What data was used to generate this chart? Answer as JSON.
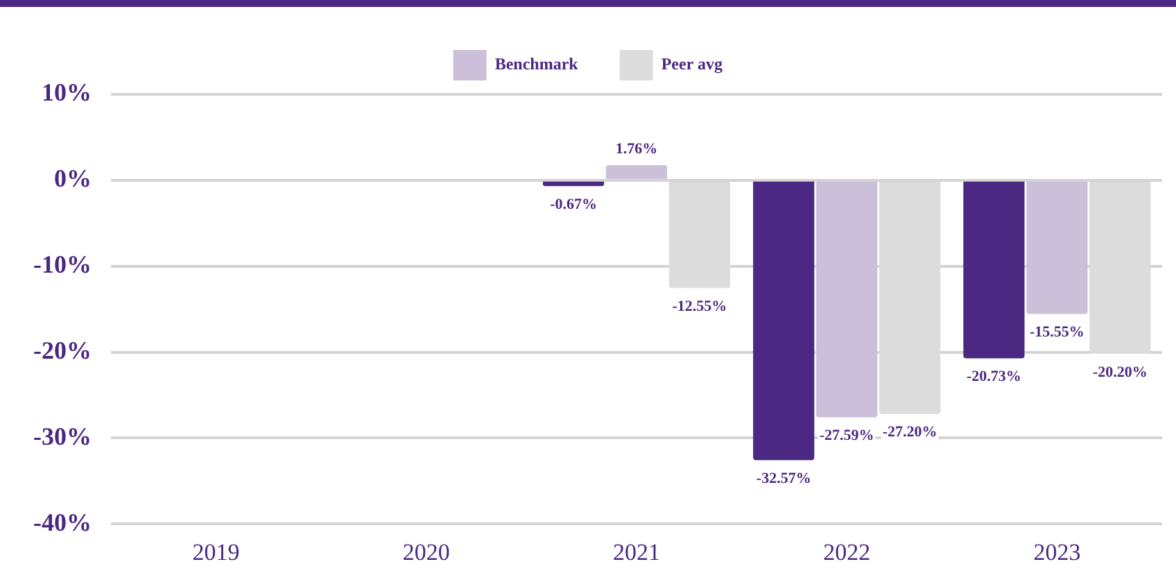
{
  "chart_data": {
    "type": "bar",
    "categories": [
      "2019",
      "2020",
      "2021",
      "2022",
      "2023"
    ],
    "series": [
      {
        "color": "#4b2882",
        "values": [
          null,
          null,
          -0.67,
          -32.57,
          -20.73
        ],
        "value_labels": [
          null,
          null,
          "-0.67%",
          "-32.57%",
          "-20.73%"
        ]
      },
      {
        "name": "Benchmark",
        "color": "#cbbfd9",
        "values": [
          null,
          null,
          1.76,
          -27.59,
          -15.55
        ],
        "value_labels": [
          null,
          null,
          "1.76%",
          "-27.59%",
          "-15.55%"
        ]
      },
      {
        "name": "Peer avg",
        "color": "#dcdcdc",
        "values": [
          null,
          null,
          -12.55,
          -27.2,
          -20.2
        ],
        "value_labels": [
          null,
          null,
          "-12.55%",
          "-27.20%",
          "-20.20%"
        ]
      }
    ],
    "ylim": [
      -40,
      10
    ],
    "yticks": [
      {
        "value": -40,
        "label": "-40%"
      },
      {
        "value": -30,
        "label": "-30%"
      },
      {
        "value": -20,
        "label": "-20%"
      },
      {
        "value": -10,
        "label": "-10%"
      },
      {
        "value": 0,
        "label": "0%"
      },
      {
        "value": 10,
        "label": "10%"
      }
    ],
    "grid": "y",
    "legend": "top"
  }
}
